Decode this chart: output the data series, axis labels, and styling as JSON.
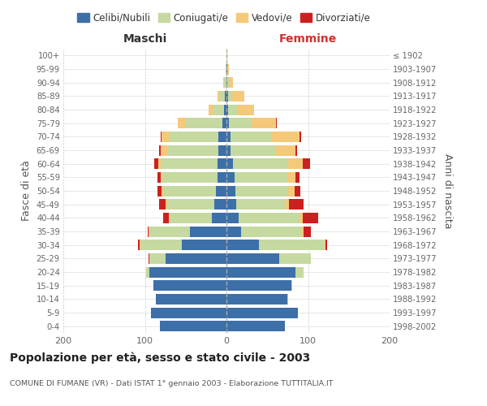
{
  "age_groups": [
    "0-4",
    "5-9",
    "10-14",
    "15-19",
    "20-24",
    "25-29",
    "30-34",
    "35-39",
    "40-44",
    "45-49",
    "50-54",
    "55-59",
    "60-64",
    "65-69",
    "70-74",
    "75-79",
    "80-84",
    "85-89",
    "90-94",
    "95-99",
    "100+"
  ],
  "birth_years": [
    "1998-2002",
    "1993-1997",
    "1988-1992",
    "1983-1987",
    "1978-1982",
    "1973-1977",
    "1968-1972",
    "1963-1967",
    "1958-1962",
    "1953-1957",
    "1948-1952",
    "1943-1947",
    "1938-1942",
    "1933-1937",
    "1928-1932",
    "1923-1927",
    "1918-1922",
    "1913-1917",
    "1908-1912",
    "1903-1907",
    "≤ 1902"
  ],
  "male": {
    "celibi": [
      82,
      93,
      87,
      90,
      95,
      75,
      55,
      45,
      18,
      15,
      13,
      11,
      11,
      10,
      10,
      5,
      3,
      2,
      0,
      0,
      0
    ],
    "coniugati": [
      0,
      0,
      0,
      0,
      4,
      20,
      50,
      50,
      52,
      58,
      65,
      68,
      70,
      63,
      60,
      45,
      14,
      6,
      3,
      1,
      0
    ],
    "vedovi": [
      0,
      0,
      0,
      0,
      0,
      0,
      1,
      1,
      1,
      2,
      2,
      2,
      3,
      8,
      10,
      10,
      5,
      3,
      1,
      0,
      0
    ],
    "divorziati": [
      0,
      0,
      0,
      0,
      0,
      1,
      2,
      1,
      7,
      8,
      5,
      4,
      5,
      2,
      1,
      0,
      0,
      0,
      0,
      0,
      0
    ]
  },
  "female": {
    "nubili": [
      72,
      88,
      75,
      80,
      85,
      65,
      40,
      18,
      15,
      12,
      11,
      10,
      8,
      5,
      5,
      3,
      2,
      2,
      1,
      1,
      0
    ],
    "coniugate": [
      0,
      0,
      1,
      1,
      10,
      38,
      80,
      75,
      75,
      60,
      65,
      65,
      68,
      55,
      50,
      28,
      12,
      5,
      2,
      1,
      0
    ],
    "vedove": [
      0,
      0,
      0,
      0,
      0,
      0,
      1,
      2,
      4,
      5,
      8,
      10,
      18,
      25,
      35,
      30,
      20,
      15,
      5,
      1,
      1
    ],
    "divorziate": [
      0,
      0,
      0,
      0,
      0,
      0,
      2,
      8,
      18,
      18,
      7,
      5,
      8,
      2,
      2,
      1,
      0,
      0,
      0,
      0,
      0
    ]
  },
  "colors": {
    "celibi": "#3d6fa8",
    "coniugati": "#c5d9a0",
    "vedovi": "#f5c97a",
    "divorziati": "#cc2020"
  },
  "xlim": 200,
  "title": "Popolazione per età, sesso e stato civile - 2003",
  "subtitle": "COMUNE DI FUMANE (VR) - Dati ISTAT 1° gennaio 2003 - Elaborazione TUTTITALIA.IT",
  "ylabel_left": "Fasce di età",
  "ylabel_right": "Anni di nascita",
  "xlabel_left": "Maschi",
  "xlabel_right": "Femmine"
}
